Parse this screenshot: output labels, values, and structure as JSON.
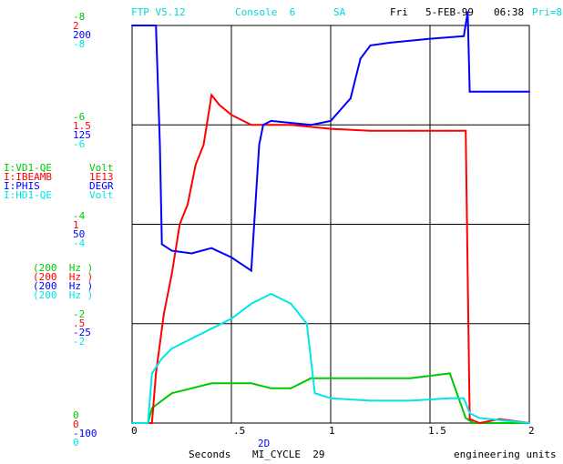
{
  "header": {
    "app": "FTP V5.12",
    "console": "Console  6",
    "sa": "SA",
    "day": "Fri",
    "date": "5-FEB-99",
    "time": "06:38",
    "pri": "Pri=8"
  },
  "axis_groups": {
    "top": [
      {
        "text": "-8",
        "color": "#00c800"
      },
      {
        "text": "2",
        "color": "#ff0000"
      },
      {
        "text": "200",
        "color": "#0000ff"
      },
      {
        "text": "-8",
        "color": "#00e6e6"
      }
    ],
    "g6": [
      {
        "text": "-6",
        "color": "#00c800"
      },
      {
        "text": "1.5",
        "color": "#ff0000"
      },
      {
        "text": "125",
        "color": "#0000ff"
      },
      {
        "text": "-6",
        "color": "#00e6e6"
      }
    ],
    "g4": [
      {
        "text": "-4",
        "color": "#00c800"
      },
      {
        "text": "1",
        "color": "#ff0000"
      },
      {
        "text": "50",
        "color": "#0000ff"
      },
      {
        "text": "-4",
        "color": "#00e6e6"
      }
    ],
    "g2": [
      {
        "text": "-2",
        "color": "#00c800"
      },
      {
        "text": ".5",
        "color": "#ff0000"
      },
      {
        "text": "-25",
        "color": "#0000ff"
      },
      {
        "text": "-2",
        "color": "#00e6e6"
      }
    ],
    "bottom": [
      {
        "text": "0",
        "color": "#00c800"
      },
      {
        "text": "0",
        "color": "#ff0000"
      },
      {
        "text": "-100",
        "color": "#0000ff"
      },
      {
        "text": "0",
        "color": "#00e6e6"
      }
    ]
  },
  "legend": [
    {
      "name": "I:VD1-QE",
      "unit": "Volt",
      "color": "#00c800"
    },
    {
      "name": "I:IBEAMB",
      "unit": "1E13",
      "color": "#ff0000"
    },
    {
      "name": "I:PHIS",
      "unit": "DEGR",
      "color": "#0000ff"
    },
    {
      "name": "I:HD1-QE",
      "unit": "Volt",
      "color": "#00e6e6"
    }
  ],
  "rates": [
    {
      "text": "(200  Hz )",
      "color": "#00c800"
    },
    {
      "text": "(200  Hz )",
      "color": "#ff0000"
    },
    {
      "text": "(200  Hz )",
      "color": "#0000ff"
    },
    {
      "text": "(200  Hz )",
      "color": "#00e6e6"
    }
  ],
  "footer": {
    "x2d": "2D",
    "seconds": "Seconds",
    "cycle": "MI_CYCLE  29",
    "units": "engineering units"
  },
  "chart_data": {
    "type": "line",
    "xlabel": "Seconds",
    "xlim": [
      0,
      2
    ],
    "xticks": [
      "0",
      ".5",
      "1",
      "1.5",
      "2"
    ],
    "grid": true,
    "series": [
      {
        "name": "I:VD1-QE",
        "color": "#00c800",
        "ylim": [
          0,
          -8
        ],
        "x": [
          0,
          0.08,
          0.1,
          0.2,
          0.3,
          0.4,
          0.5,
          0.6,
          0.7,
          0.8,
          0.9,
          1.0,
          1.2,
          1.4,
          1.6,
          1.68,
          1.72,
          1.8,
          2.0
        ],
        "y": [
          0,
          0,
          -0.3,
          -0.6,
          -0.7,
          -0.8,
          -0.8,
          -0.8,
          -0.7,
          -0.7,
          -0.9,
          -0.9,
          -0.9,
          -0.9,
          -1.0,
          -0.1,
          0,
          0,
          0
        ]
      },
      {
        "name": "I:IBEAMB",
        "color": "#ff0000",
        "ylim": [
          0,
          2
        ],
        "x": [
          0,
          0.1,
          0.12,
          0.16,
          0.2,
          0.24,
          0.28,
          0.32,
          0.36,
          0.4,
          0.44,
          0.5,
          0.6,
          0.7,
          0.8,
          1.0,
          1.2,
          1.4,
          1.6,
          1.68,
          1.7,
          1.75,
          1.85,
          2.0
        ],
        "y": [
          0,
          0,
          0.25,
          0.55,
          0.75,
          1.0,
          1.1,
          1.3,
          1.4,
          1.65,
          1.6,
          1.55,
          1.5,
          1.5,
          1.5,
          1.48,
          1.47,
          1.47,
          1.47,
          1.47,
          0.02,
          0,
          0.02,
          0
        ]
      },
      {
        "name": "I:PHIS",
        "color": "#0000ff",
        "ylim": [
          -100,
          200
        ],
        "x": [
          0,
          0.12,
          0.14,
          0.15,
          0.2,
          0.3,
          0.4,
          0.5,
          0.6,
          0.64,
          0.66,
          0.7,
          0.9,
          1.0,
          1.1,
          1.15,
          1.2,
          1.3,
          1.5,
          1.67,
          1.69,
          1.7,
          2.0
        ],
        "y": [
          200,
          200,
          110,
          35,
          30,
          28,
          32,
          25,
          15,
          110,
          125,
          128,
          125,
          128,
          145,
          175,
          185,
          187,
          190,
          192,
          210,
          150,
          150
        ]
      },
      {
        "name": "I:HD1-QE",
        "color": "#00e6e6",
        "ylim": [
          0,
          -8
        ],
        "x": [
          0,
          0.08,
          0.1,
          0.15,
          0.2,
          0.3,
          0.4,
          0.5,
          0.6,
          0.7,
          0.8,
          0.88,
          0.92,
          1.0,
          1.2,
          1.4,
          1.6,
          1.67,
          1.7,
          1.75,
          2.0
        ],
        "y": [
          0,
          0,
          -1.0,
          -1.3,
          -1.5,
          -1.7,
          -1.9,
          -2.1,
          -2.4,
          -2.6,
          -2.4,
          -2.0,
          -0.6,
          -0.5,
          -0.45,
          -0.45,
          -0.5,
          -0.5,
          -0.2,
          -0.1,
          0
        ]
      }
    ]
  }
}
